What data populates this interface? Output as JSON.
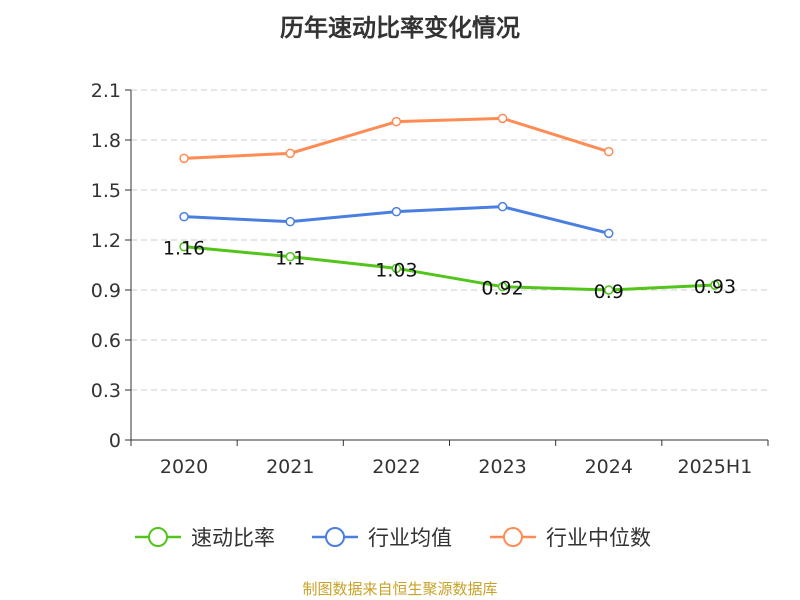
{
  "chart_data": {
    "type": "line",
    "title": "历年速动比率变化情况",
    "categories": [
      "2020",
      "2021",
      "2022",
      "2023",
      "2024",
      "2025H1"
    ],
    "ylim": [
      0,
      2.1
    ],
    "yticks": [
      "0",
      "0.3",
      "0.6",
      "0.9",
      "1.2",
      "1.5",
      "1.8",
      "2.1"
    ],
    "grid": true,
    "legend_position": "bottom",
    "series": [
      {
        "name": "速动比率",
        "color": "#52c41a",
        "values": [
          1.16,
          1.1,
          1.03,
          0.92,
          0.9,
          0.93
        ],
        "labels": [
          "1.16",
          "1.1",
          "1.03",
          "0.92",
          "0.9",
          "0.93"
        ]
      },
      {
        "name": "行业均值",
        "color": "#4a7fe0",
        "values": [
          1.34,
          1.31,
          1.37,
          1.4,
          1.24,
          null
        ]
      },
      {
        "name": "行业中位数",
        "color": "#ff8c55",
        "values": [
          1.69,
          1.72,
          1.91,
          1.93,
          1.73,
          null
        ]
      }
    ]
  },
  "source": "制图数据来自恒生聚源数据库"
}
